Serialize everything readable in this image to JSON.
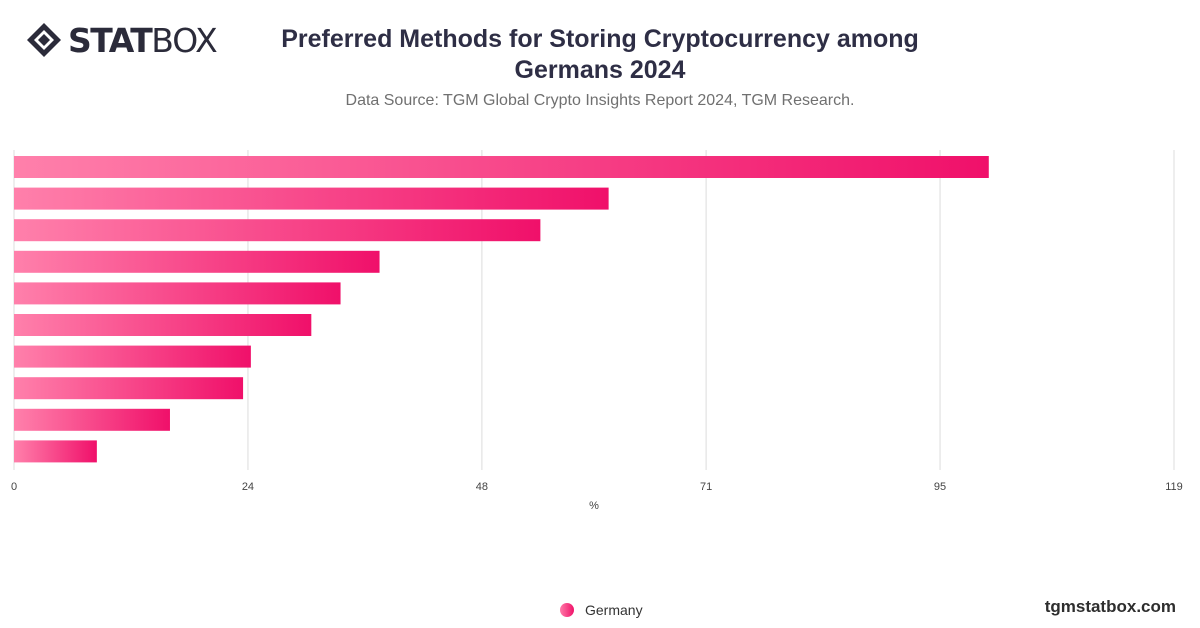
{
  "brand": {
    "logo_text_bold": "STAT",
    "logo_text_light": "BOX",
    "website": "tgmstatbox.com"
  },
  "title": "Preferred Methods for Storing Cryptocurrency among Germans 2024",
  "subtitle": "Data Source: TGM Global Crypto Insights Report 2024, TGM Research.",
  "colors": {
    "bar_start": "#ff80ab",
    "bar_end": "#f0106a",
    "grid": "#dcdcdc",
    "axis_text": "#444444"
  },
  "chart_data": {
    "type": "bar",
    "orientation": "horizontal",
    "xlabel": "%",
    "xlim": [
      0,
      119
    ],
    "xticks": [
      0,
      24,
      48,
      71,
      95,
      119
    ],
    "grid": true,
    "legend_position": "bottom-center",
    "series": [
      {
        "name": "Germany",
        "values": [
          100,
          61,
          54,
          37.5,
          33.5,
          30.5,
          24.3,
          23.5,
          16,
          8.5
        ]
      }
    ]
  }
}
